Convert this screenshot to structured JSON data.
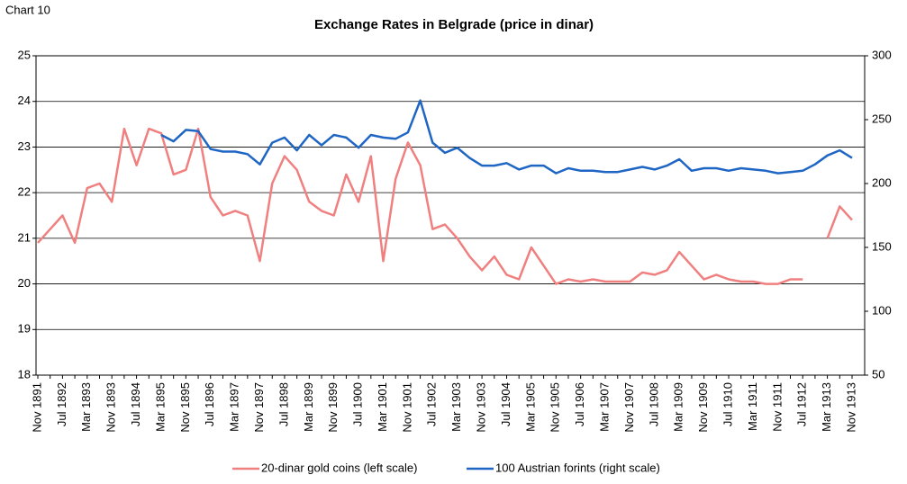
{
  "chart_data": {
    "type": "line",
    "chart_label": "Chart 10",
    "title": "Exchange Rates in Belgrade (price in dinar)",
    "categories": [
      "Nov 1891",
      null,
      "Jul 1892",
      null,
      "Mar 1893",
      null,
      "Nov 1893",
      null,
      "Jul 1894",
      null,
      "Mar 1895",
      null,
      "Nov 1895",
      null,
      "Jul 1896",
      null,
      "Mar 1897",
      null,
      "Nov 1897",
      null,
      "Jul 1898",
      null,
      "Mar 1899",
      null,
      "Nov 1899",
      null,
      "Jul 1900",
      null,
      "Mar 1901",
      null,
      "Nov 1901",
      null,
      "Jul 1902",
      null,
      "Mar 1903",
      null,
      "Nov 1903",
      null,
      "Jul 1904",
      null,
      "Mar 1905",
      null,
      "Nov 1905",
      null,
      "Jul 1906",
      null,
      "Mar 1907",
      null,
      "Nov 1907",
      null,
      "Jul 1908",
      null,
      "Mar 1909",
      null,
      "Nov 1909",
      null,
      "Jul 1910",
      null,
      "Mar 1911",
      null,
      "Nov 1911",
      null,
      "Jul 1912",
      null,
      "Mar 1913",
      null,
      "Nov 1913"
    ],
    "series": [
      {
        "name": "20-dinar gold coins (left scale)",
        "color": "#f08080",
        "axis": "y",
        "values": [
          20.9,
          21.2,
          21.5,
          20.9,
          22.1,
          22.2,
          21.8,
          23.4,
          22.6,
          23.4,
          23.3,
          22.4,
          22.5,
          23.4,
          21.9,
          21.5,
          21.6,
          21.5,
          20.5,
          22.2,
          22.8,
          22.5,
          21.8,
          21.6,
          21.5,
          22.4,
          21.8,
          22.8,
          20.5,
          22.3,
          23.1,
          22.6,
          21.2,
          21.3,
          21.0,
          20.6,
          20.3,
          20.6,
          20.2,
          20.1,
          20.8,
          20.4,
          20.0,
          20.1,
          20.05,
          20.1,
          20.05,
          20.05,
          20.05,
          20.25,
          20.2,
          20.3,
          20.7,
          20.4,
          20.1,
          20.2,
          20.1,
          20.05,
          20.05,
          20.0,
          20.0,
          20.1,
          20.1,
          null,
          21.0,
          21.7,
          21.4
        ]
      },
      {
        "name": "100 Austrian forints (right scale)",
        "color": "#1f66c4",
        "axis": "y2",
        "values": [
          null,
          null,
          null,
          null,
          null,
          null,
          null,
          null,
          null,
          null,
          238,
          233,
          242,
          241,
          227,
          225,
          225,
          223,
          215,
          232,
          236,
          226,
          238,
          230,
          238,
          236,
          228,
          238,
          236,
          235,
          240,
          265,
          232,
          224,
          228,
          220,
          214,
          214,
          216,
          211,
          214,
          214,
          208,
          212,
          210,
          210,
          209,
          209,
          211,
          213,
          211,
          214,
          219,
          210,
          212,
          212,
          210,
          212,
          211,
          210,
          208,
          209,
          210,
          215,
          222,
          226,
          220
        ]
      }
    ],
    "ylim": [
      18,
      25
    ],
    "yticks": [
      18,
      19,
      20,
      21,
      22,
      23,
      24,
      25
    ],
    "y2lim": [
      50,
      300
    ],
    "y2ticks": [
      50,
      100,
      150,
      200,
      250,
      300
    ],
    "grid": true
  }
}
